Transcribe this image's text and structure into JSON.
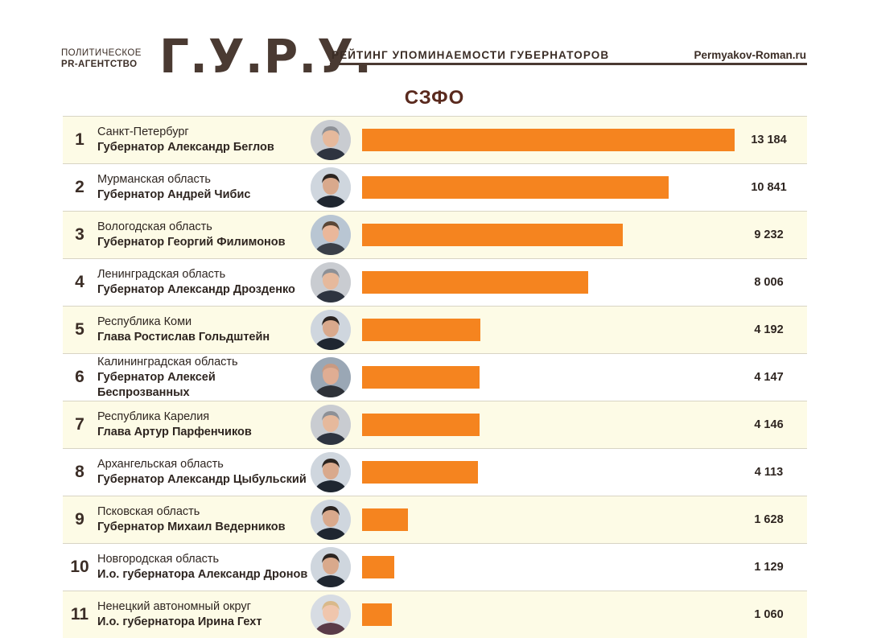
{
  "header": {
    "brand_line1": "ПОЛИТИЧЕСКОЕ",
    "brand_line2": "PR-АГЕНТСТВО",
    "brand_name": "Г.У.Р.У.",
    "title": "РЕЙТИНГ УПОМИНАЕМОСТИ ГУБЕРНАТОРОВ",
    "site": "Permyakov-Roman.ru"
  },
  "colors": {
    "bar": "#f5841f",
    "row_alt": "#fdfbe6",
    "text": "#3b2d26"
  },
  "chart_data": {
    "type": "bar",
    "orientation": "horizontal",
    "title": "СЗФО",
    "xlim": [
      0,
      13184
    ],
    "rows": [
      {
        "rank": "1",
        "region": "Санкт-Петербург",
        "person": "Губернатор Александр Беглов",
        "value": 13184,
        "value_label": "13 184",
        "avatar": "avatar-man-grey-hair"
      },
      {
        "rank": "2",
        "region": "Мурманская область",
        "person": "Губернатор Андрей Чибис",
        "value": 10841,
        "value_label": "10 841",
        "avatar": "avatar-man-dark-hair"
      },
      {
        "rank": "3",
        "region": "Вологодская область",
        "person": "Губернатор Георгий Филимонов",
        "value": 9232,
        "value_label": "9 232",
        "avatar": "avatar-man-smiling"
      },
      {
        "rank": "4",
        "region": "Ленинградская область",
        "person": "Губернатор Александр Дрозденко",
        "value": 8006,
        "value_label": "8 006",
        "avatar": "avatar-man-grey-hair"
      },
      {
        "rank": "5",
        "region": "Республика Коми",
        "person": "Глава Ростислав Гольдштейн",
        "value": 4192,
        "value_label": "4 192",
        "avatar": "avatar-man-dark-hair"
      },
      {
        "rank": "6",
        "region": "Калининградская область",
        "person": "Губернатор Алексей Беспрозванных",
        "value": 4147,
        "value_label": "4 147",
        "avatar": "avatar-man-bald"
      },
      {
        "rank": "7",
        "region": "Республика Карелия",
        "person": "Глава Артур Парфенчиков",
        "value": 4146,
        "value_label": "4 146",
        "avatar": "avatar-man-grey-hair"
      },
      {
        "rank": "8",
        "region": "Архангельская область",
        "person": "Губернатор Александр Цыбульский",
        "value": 4113,
        "value_label": "4 113",
        "avatar": "avatar-man-dark-hair"
      },
      {
        "rank": "9",
        "region": "Псковская область",
        "person": "Губернатор Михаил Ведерников",
        "value": 1628,
        "value_label": "1 628",
        "avatar": "avatar-man-dark-hair"
      },
      {
        "rank": "10",
        "region": "Новгородская область",
        "person": "И.о. губернатора Александр Дронов",
        "value": 1129,
        "value_label": "1 129",
        "avatar": "avatar-man-dark-hair"
      },
      {
        "rank": "11",
        "region": "Ненецкий автономный округ",
        "person": "И.о. губернатора Ирина Гехт",
        "value": 1060,
        "value_label": "1 060",
        "avatar": "avatar-woman-blonde"
      }
    ]
  }
}
